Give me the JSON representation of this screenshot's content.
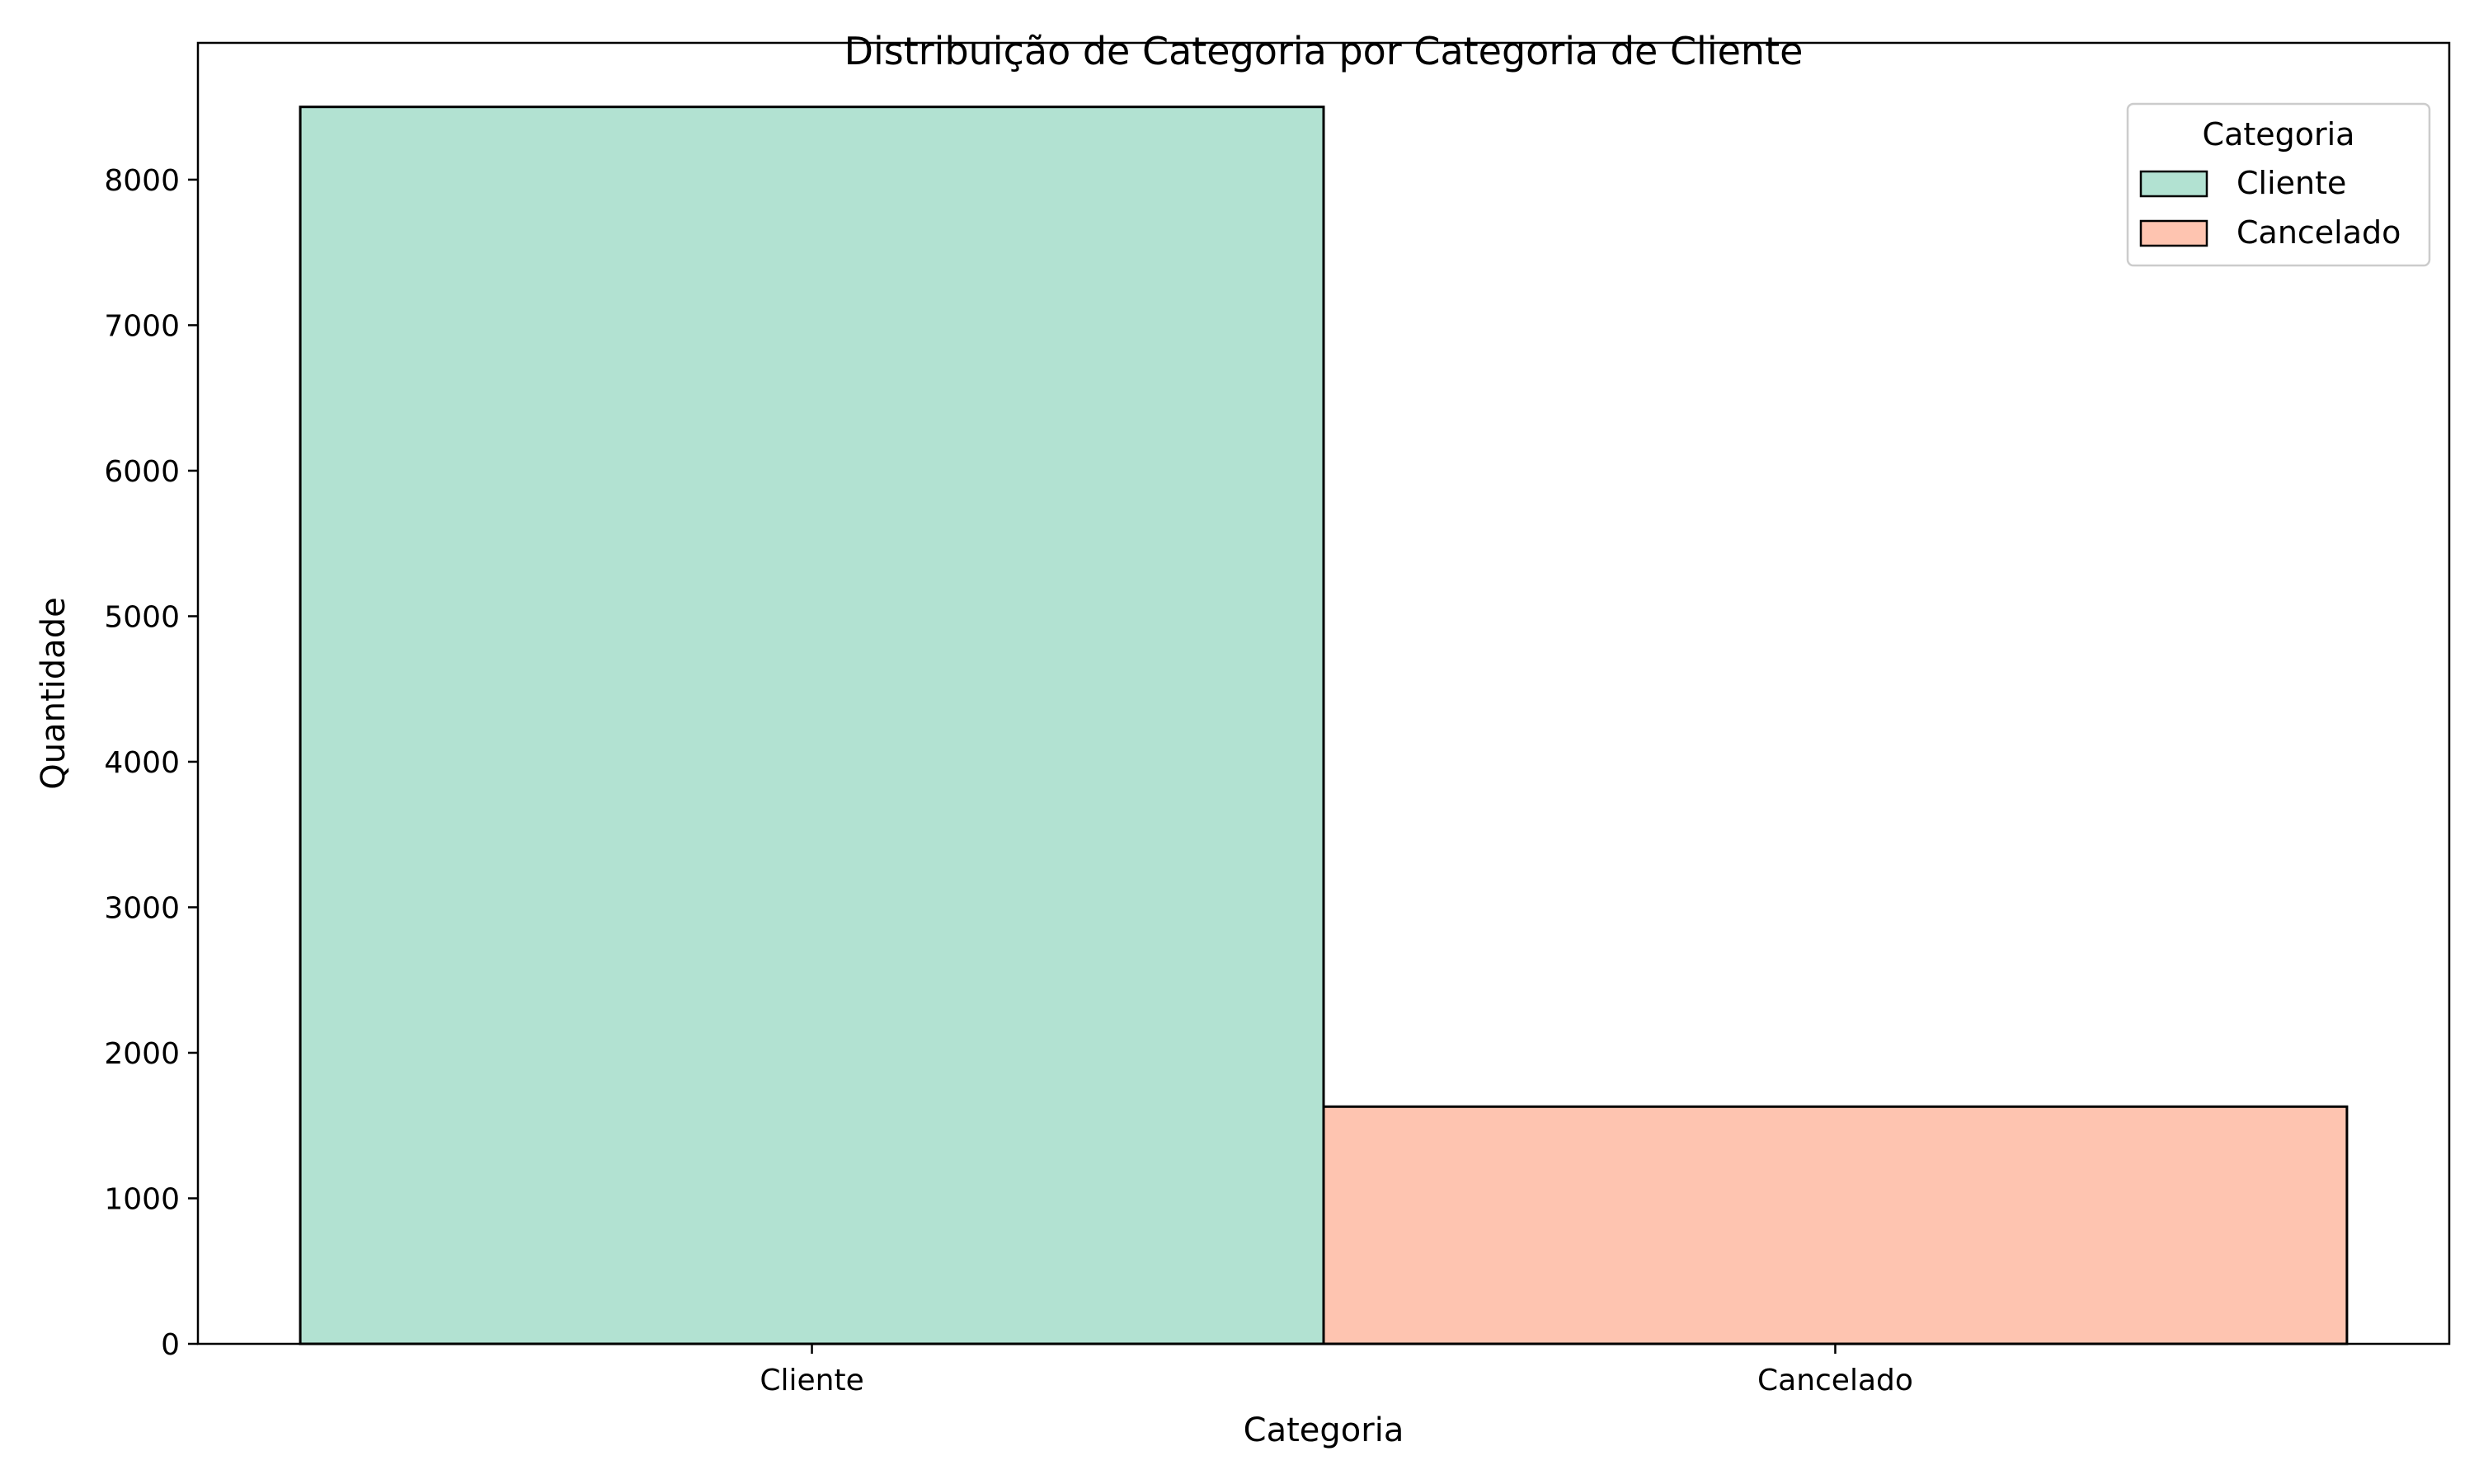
{
  "chart_data": {
    "type": "bar",
    "title": "Distribuição de Categoria por Categoria de Cliente",
    "xlabel": "Categoria",
    "ylabel": "Quantidade",
    "categories": [
      "Cliente",
      "Cancelado"
    ],
    "values": [
      8500,
      1630
    ],
    "colors": [
      "#b2e2d2",
      "#fec4b0"
    ],
    "edge_color": "#000000",
    "ylim": [
      0,
      8940
    ],
    "yticks": [
      0,
      1000,
      2000,
      3000,
      4000,
      5000,
      6000,
      7000,
      8000
    ],
    "grid": false,
    "legend": {
      "title": "Categoria",
      "placement": "top-right",
      "entries": [
        "Cliente",
        "Cancelado"
      ]
    }
  }
}
